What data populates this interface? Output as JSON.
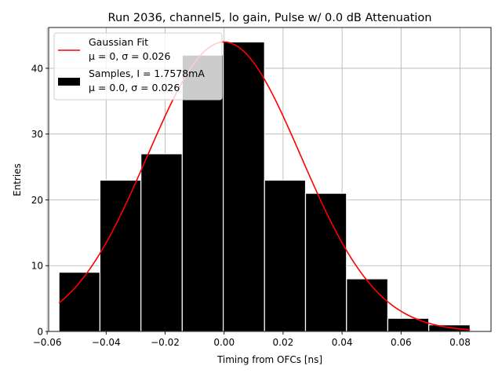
{
  "chart_data": {
    "type": "histogram",
    "title": "Run 2036, channel5, lo gain, Pulse w/ 0.0 dB Attenuation",
    "xlabel": "Timing from OFCs [ns]",
    "ylabel": "Entries",
    "xlim": [
      -0.0595,
      0.0905
    ],
    "ylim": [
      0,
      46.2
    ],
    "xticks": [
      -0.06,
      -0.04,
      -0.02,
      0.0,
      0.02,
      0.04,
      0.06,
      0.08
    ],
    "xtick_labels": [
      "−0.06",
      "−0.04",
      "−0.02",
      "0.00",
      "0.02",
      "0.04",
      "0.06",
      "0.08"
    ],
    "yticks": [
      0,
      10,
      20,
      30,
      40
    ],
    "ytick_labels": [
      "0",
      "10",
      "20",
      "30",
      "40"
    ],
    "grid": true,
    "bins": [
      {
        "left": -0.056,
        "right": -0.0421,
        "count": 9
      },
      {
        "left": -0.0421,
        "right": -0.0282,
        "count": 23
      },
      {
        "left": -0.0282,
        "right": -0.0142,
        "count": 27
      },
      {
        "left": -0.0142,
        "right": -0.0003,
        "count": 42
      },
      {
        "left": -0.0003,
        "right": 0.0137,
        "count": 44
      },
      {
        "left": 0.0137,
        "right": 0.0276,
        "count": 23
      },
      {
        "left": 0.0276,
        "right": 0.0415,
        "count": 21
      },
      {
        "left": 0.0415,
        "right": 0.0555,
        "count": 8
      },
      {
        "left": 0.0555,
        "right": 0.0694,
        "count": 2
      },
      {
        "left": 0.0694,
        "right": 0.0834,
        "count": 1
      }
    ],
    "fit": {
      "type": "gaussian",
      "mu": 0.0,
      "sigma": 0.026,
      "amplitude": 44,
      "x_range": [
        -0.056,
        0.0834
      ],
      "color": "#ff0000"
    },
    "bar_color": "#000000",
    "legend": {
      "placement": "top-left",
      "entries": [
        {
          "label": "Gaussian Fit",
          "sublabel": "μ = 0, σ = 0.026",
          "kind": "line",
          "color": "#ff0000"
        },
        {
          "label": "Samples, I = 1.7578mA",
          "sublabel": "μ = 0.0, σ = 0.026",
          "kind": "patch",
          "color": "#000000"
        }
      ]
    }
  }
}
